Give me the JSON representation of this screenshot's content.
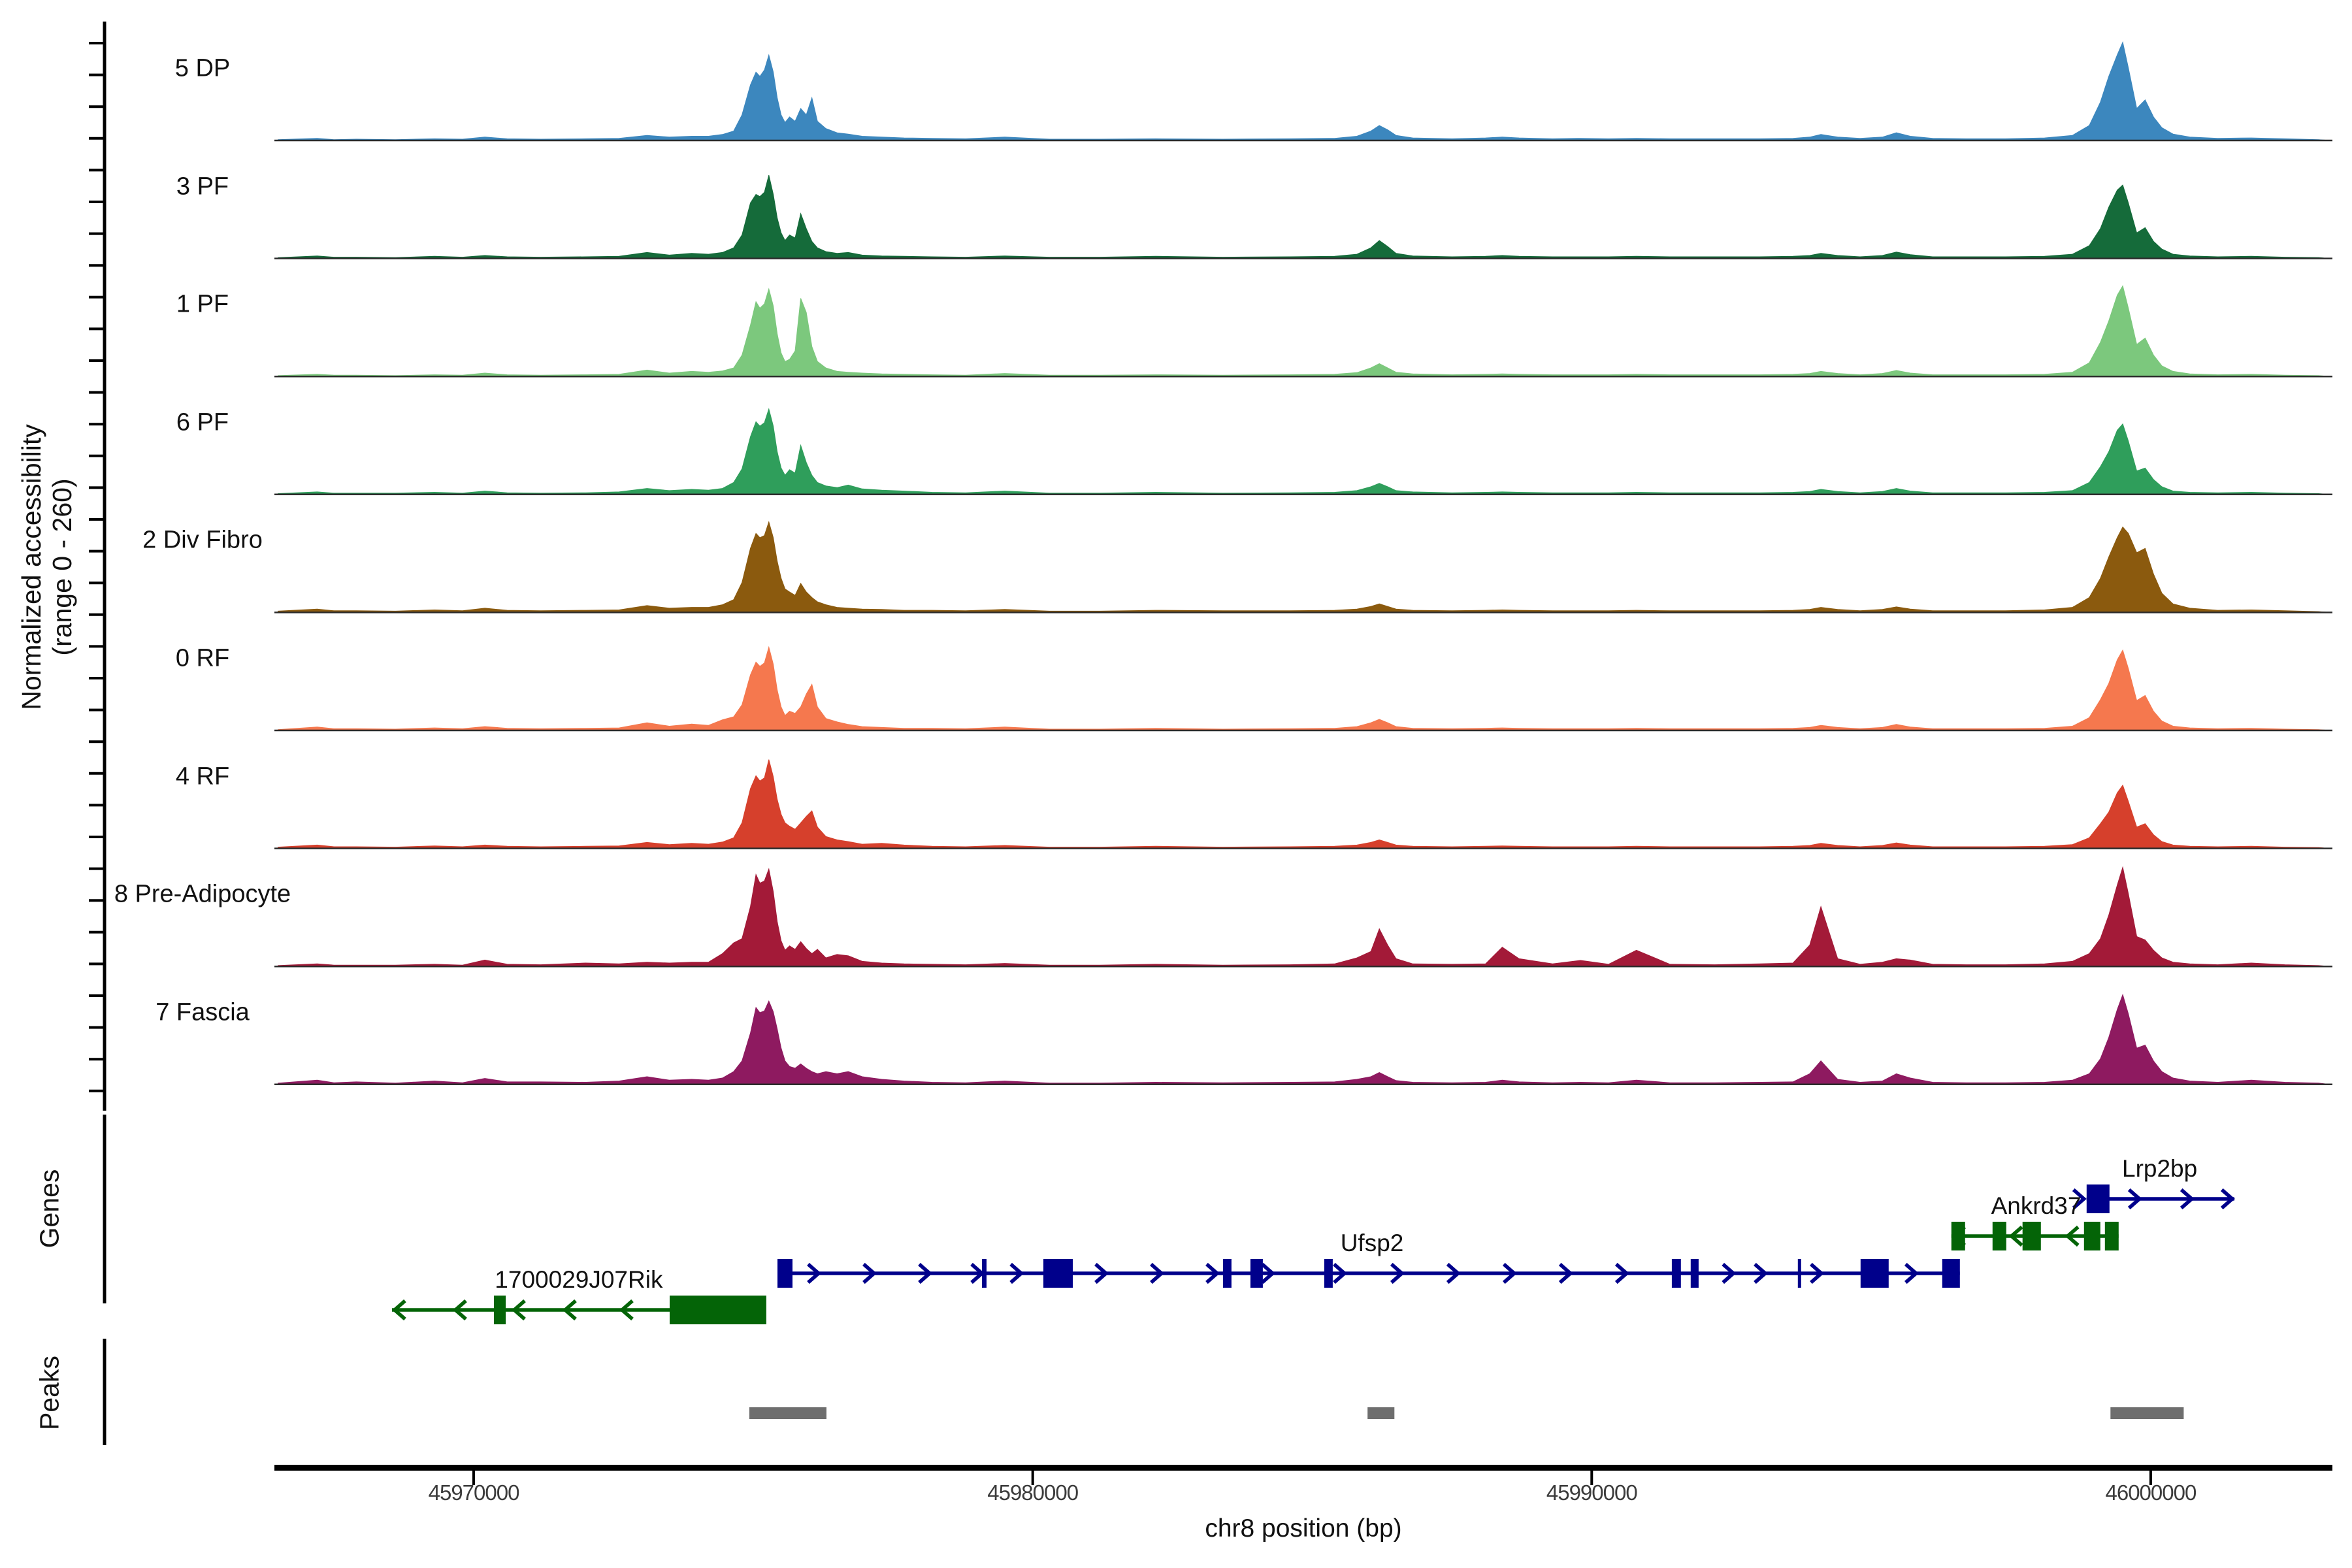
{
  "figure": {
    "x_axis_title": "chr8 position (bp)",
    "y_axis_label_line1": "Normalized accessibility",
    "y_axis_label_line2": "(range 0 - 260)",
    "genes_section_label": "Genes",
    "peaks_section_label": "Peaks"
  },
  "chart_data": {
    "type": "area",
    "subtype": "genome-coverage-tracks",
    "xlabel": "chr8 position (bp)",
    "ylabel": "Normalized accessibility (range 0 - 260)",
    "x_range_bp": [
      45966435,
      46003250
    ],
    "y_range_per_track": [
      0,
      260
    ],
    "x_ticks": [
      {
        "bp": 45970000,
        "label": "45970000"
      },
      {
        "bp": 45980000,
        "label": "45980000"
      },
      {
        "bp": 45990000,
        "label": "45990000"
      },
      {
        "bp": 46000000,
        "label": "46000000"
      }
    ],
    "x": [
      45966500,
      45967200,
      45967500,
      45967900,
      45968600,
      45969300,
      45969800,
      45970200,
      45970600,
      45971200,
      45972000,
      45972600,
      45973100,
      45973500,
      45973900,
      45974200,
      45974450,
      45974650,
      45974800,
      45974950,
      45975050,
      45975120,
      45975200,
      45975280,
      45975360,
      45975430,
      45975500,
      45975570,
      45975650,
      45975750,
      45975850,
      45975950,
      45976050,
      45976150,
      45976300,
      45976500,
      45976700,
      45976950,
      45977300,
      45977700,
      45978200,
      45978800,
      45979500,
      45980300,
      45981200,
      45982200,
      45983400,
      45984600,
      45985400,
      45985800,
      45986050,
      45986200,
      45986350,
      45986500,
      45986800,
      45987500,
      45988100,
      45988400,
      45988700,
      45989300,
      45989800,
      45990300,
      45990800,
      45991400,
      45992200,
      45993000,
      45993600,
      45993900,
      45994100,
      45994400,
      45994800,
      45995200,
      45995450,
      45995700,
      45996100,
      45996700,
      45997400,
      45998100,
      45998600,
      45998900,
      45999100,
      45999250,
      45999400,
      45999500,
      45999600,
      45999750,
      45999900,
      46000050,
      46000200,
      46000400,
      46000700,
      46001200,
      46001800,
      46002400,
      46003000,
      46003200
    ],
    "tracks": [
      {
        "label": "5 DP",
        "color": "#3C87BE",
        "values": [
          2,
          5,
          2,
          3,
          2,
          4,
          3,
          8,
          4,
          3,
          4,
          5,
          12,
          8,
          10,
          10,
          14,
          22,
          60,
          130,
          160,
          150,
          165,
          200,
          160,
          100,
          60,
          42,
          55,
          45,
          75,
          60,
          100,
          45,
          28,
          18,
          15,
          10,
          8,
          6,
          5,
          4,
          8,
          3,
          3,
          4,
          3,
          4,
          5,
          10,
          22,
          35,
          25,
          12,
          6,
          4,
          6,
          8,
          6,
          4,
          5,
          4,
          5,
          4,
          4,
          4,
          5,
          8,
          14,
          8,
          5,
          8,
          18,
          10,
          5,
          4,
          4,
          6,
          12,
          35,
          90,
          150,
          200,
          230,
          170,
          75,
          95,
          55,
          30,
          15,
          8,
          5,
          6,
          4,
          2,
          0
        ]
      },
      {
        "label": "3 PF",
        "color": "#156B3A",
        "values": [
          2,
          6,
          3,
          3,
          2,
          5,
          3,
          7,
          4,
          3,
          4,
          5,
          14,
          8,
          12,
          10,
          14,
          25,
          55,
          130,
          150,
          145,
          155,
          195,
          150,
          95,
          60,
          42,
          55,
          48,
          105,
          70,
          40,
          25,
          16,
          12,
          14,
          8,
          6,
          5,
          4,
          3,
          6,
          3,
          3,
          5,
          3,
          4,
          5,
          10,
          25,
          42,
          28,
          12,
          6,
          4,
          5,
          7,
          5,
          4,
          4,
          4,
          5,
          4,
          4,
          4,
          5,
          7,
          12,
          7,
          4,
          7,
          15,
          9,
          4,
          4,
          4,
          5,
          10,
          30,
          70,
          120,
          160,
          172,
          130,
          60,
          72,
          40,
          22,
          10,
          6,
          4,
          5,
          3,
          2,
          0
        ]
      },
      {
        "label": "1 PF",
        "color": "#7CC87D",
        "values": [
          2,
          5,
          3,
          3,
          2,
          4,
          3,
          8,
          4,
          3,
          4,
          5,
          15,
          8,
          12,
          10,
          13,
          20,
          50,
          120,
          175,
          160,
          170,
          205,
          165,
          100,
          55,
          35,
          40,
          60,
          183,
          150,
          70,
          35,
          20,
          12,
          10,
          8,
          6,
          5,
          4,
          3,
          7,
          3,
          3,
          4,
          3,
          4,
          5,
          9,
          20,
          30,
          20,
          10,
          6,
          4,
          5,
          6,
          5,
          4,
          4,
          4,
          5,
          4,
          4,
          4,
          5,
          7,
          12,
          7,
          4,
          7,
          14,
          8,
          4,
          4,
          4,
          5,
          10,
          32,
          80,
          130,
          190,
          212,
          160,
          75,
          90,
          50,
          25,
          12,
          6,
          4,
          5,
          3,
          2,
          0
        ]
      },
      {
        "label": "6 PF",
        "color": "#2F9E5B",
        "values": [
          2,
          6,
          3,
          3,
          3,
          5,
          3,
          8,
          4,
          3,
          4,
          6,
          14,
          9,
          12,
          10,
          14,
          28,
          60,
          135,
          170,
          160,
          168,
          200,
          160,
          100,
          62,
          45,
          58,
          50,
          115,
          75,
          45,
          28,
          20,
          16,
          22,
          13,
          10,
          8,
          5,
          4,
          8,
          3,
          3,
          5,
          3,
          4,
          5,
          9,
          18,
          26,
          18,
          9,
          6,
          4,
          5,
          6,
          5,
          4,
          4,
          4,
          5,
          4,
          4,
          4,
          5,
          7,
          12,
          7,
          4,
          7,
          14,
          8,
          4,
          4,
          4,
          5,
          9,
          28,
          65,
          100,
          150,
          165,
          125,
          55,
          62,
          35,
          18,
          8,
          5,
          4,
          5,
          3,
          2,
          0
        ]
      },
      {
        "label": "2 Div Fibro",
        "color": "#8B5A0E",
        "values": [
          3,
          8,
          4,
          4,
          3,
          6,
          4,
          10,
          5,
          4,
          5,
          6,
          16,
          10,
          12,
          12,
          18,
          30,
          70,
          150,
          185,
          175,
          180,
          212,
          175,
          120,
          80,
          55,
          48,
          40,
          68,
          48,
          35,
          25,
          18,
          12,
          10,
          8,
          7,
          5,
          5,
          4,
          7,
          3,
          3,
          5,
          4,
          4,
          5,
          8,
          14,
          20,
          14,
          8,
          5,
          4,
          5,
          6,
          5,
          4,
          4,
          4,
          5,
          4,
          4,
          4,
          5,
          7,
          12,
          7,
          4,
          7,
          13,
          8,
          4,
          4,
          4,
          6,
          12,
          35,
          80,
          130,
          175,
          200,
          185,
          140,
          150,
          90,
          45,
          20,
          10,
          5,
          6,
          4,
          2,
          0
        ]
      },
      {
        "label": "0 RF",
        "color": "#F5784E",
        "values": [
          2,
          8,
          4,
          4,
          3,
          6,
          4,
          9,
          5,
          4,
          5,
          6,
          18,
          10,
          15,
          12,
          25,
          32,
          60,
          130,
          160,
          150,
          158,
          195,
          155,
          95,
          55,
          35,
          45,
          40,
          55,
          85,
          108,
          55,
          28,
          20,
          14,
          9,
          7,
          5,
          5,
          4,
          8,
          3,
          3,
          5,
          3,
          4,
          5,
          9,
          18,
          26,
          18,
          9,
          5,
          4,
          5,
          6,
          5,
          4,
          4,
          4,
          5,
          4,
          4,
          4,
          5,
          7,
          12,
          7,
          4,
          7,
          14,
          8,
          4,
          4,
          4,
          5,
          10,
          30,
          72,
          110,
          165,
          188,
          145,
          70,
          82,
          45,
          22,
          10,
          6,
          4,
          5,
          3,
          2,
          0
        ]
      },
      {
        "label": "4 RF",
        "color": "#D6402C",
        "values": [
          3,
          8,
          4,
          4,
          3,
          6,
          4,
          8,
          5,
          4,
          5,
          6,
          14,
          9,
          12,
          10,
          15,
          25,
          60,
          140,
          170,
          158,
          165,
          208,
          168,
          115,
          80,
          60,
          52,
          45,
          60,
          75,
          88,
          50,
          28,
          20,
          16,
          10,
          12,
          8,
          5,
          4,
          7,
          3,
          3,
          5,
          3,
          4,
          5,
          8,
          14,
          20,
          14,
          8,
          5,
          4,
          5,
          6,
          5,
          4,
          4,
          4,
          5,
          4,
          4,
          4,
          5,
          7,
          12,
          7,
          4,
          7,
          13,
          8,
          4,
          4,
          4,
          5,
          9,
          25,
          58,
          85,
          130,
          148,
          110,
          50,
          58,
          32,
          16,
          8,
          5,
          4,
          5,
          3,
          2,
          0
        ]
      },
      {
        "label": "8 Pre-Adipocyte",
        "color": "#A31A38",
        "values": [
          2,
          6,
          3,
          3,
          3,
          5,
          3,
          15,
          5,
          4,
          8,
          6,
          10,
          8,
          10,
          10,
          30,
          55,
          65,
          140,
          215,
          195,
          200,
          228,
          175,
          105,
          60,
          38,
          48,
          40,
          58,
          42,
          30,
          40,
          20,
          28,
          25,
          12,
          8,
          6,
          5,
          4,
          7,
          3,
          3,
          5,
          3,
          4,
          6,
          20,
          35,
          88,
          50,
          18,
          6,
          5,
          6,
          45,
          18,
          6,
          14,
          5,
          38,
          5,
          4,
          6,
          8,
          50,
          140,
          18,
          5,
          10,
          18,
          15,
          5,
          4,
          4,
          6,
          12,
          30,
          65,
          120,
          190,
          232,
          170,
          70,
          62,
          38,
          20,
          10,
          6,
          4,
          8,
          4,
          2,
          0
        ]
      },
      {
        "label": "7 Fascia",
        "color": "#8E1A60",
        "values": [
          3,
          10,
          4,
          6,
          3,
          8,
          4,
          14,
          6,
          6,
          5,
          8,
          18,
          10,
          12,
          10,
          15,
          30,
          55,
          120,
          180,
          168,
          172,
          195,
          170,
          130,
          85,
          55,
          42,
          38,
          48,
          38,
          30,
          25,
          30,
          25,
          30,
          18,
          12,
          8,
          5,
          4,
          8,
          3,
          3,
          5,
          4,
          5,
          6,
          12,
          18,
          28,
          18,
          9,
          5,
          4,
          5,
          10,
          6,
          4,
          5,
          4,
          10,
          4,
          4,
          5,
          6,
          25,
          55,
          12,
          5,
          8,
          25,
          15,
          5,
          4,
          4,
          5,
          10,
          25,
          60,
          110,
          175,
          210,
          165,
          85,
          92,
          55,
          30,
          15,
          8,
          5,
          10,
          5,
          3,
          0
        ]
      }
    ],
    "genes": [
      {
        "name": "Lrp2bp",
        "color": "#00008B",
        "strand": "right",
        "row": 0,
        "label_bp": 46000160,
        "line": [
          45998853,
          46001495
        ],
        "exons": [
          [
            45998853,
            45999262
          ]
        ],
        "arrows": [
          45998770,
          45999764,
          46000699,
          46001424
        ]
      },
      {
        "name": "Ankrd37",
        "color": "#046407",
        "strand": "left",
        "row": 1,
        "label_bp": 45997950,
        "line": [
          45996434,
          45999425
        ],
        "exons": [
          [
            45996434,
            45996679
          ],
          [
            45997170,
            45997415
          ],
          [
            45997707,
            45998035
          ],
          [
            45998806,
            45999098
          ],
          [
            45999180,
            45999425
          ]
        ],
        "arrows": [
          45996520,
          45997544,
          45998549
        ]
      },
      {
        "name": "Ufsp2",
        "color": "#00008B",
        "strand": "right",
        "row": 2,
        "label_bp": 45986070,
        "line": [
          45975434,
          45996585
        ],
        "exons": [
          [
            45975434,
            45975703
          ],
          [
            45979092,
            45979174
          ],
          [
            45980191,
            45980717
          ],
          [
            45983404,
            45983556
          ],
          [
            45983895,
            45984117
          ],
          [
            45985215,
            45985367
          ],
          [
            45991433,
            45991596
          ],
          [
            45991771,
            45991912
          ],
          [
            45993688,
            45993740
          ],
          [
            45994810,
            45995312
          ],
          [
            45996270,
            45996585
          ]
        ],
        "arrows": [
          45976135,
          45977128,
          45978122,
          45979058,
          45979760,
          45981277,
          45982270,
          45983264,
          45984257,
          45985543,
          45986570,
          45987574,
          45988580,
          45989584,
          45990590,
          45992500,
          45993070,
          45994074,
          45995768
        ]
      },
      {
        "name": "1700029J07Rik",
        "color": "#046407",
        "strand": "left",
        "row": 3,
        "label_bp": 45971880,
        "line": [
          45968539,
          45973600
        ],
        "exons": [
          [
            45970362,
            45970573
          ],
          [
            45973506,
            45975235
          ]
        ],
        "arrows": [
          45968620,
          45969708,
          45970760,
          45971671,
          45972688
        ]
      }
    ],
    "peaks": {
      "color": "#6E6E6E",
      "regions": [
        [
          45974930,
          45976310
        ],
        [
          45985990,
          45986470
        ],
        [
          45999280,
          46000590
        ]
      ]
    },
    "layout_hint": {
      "grid": false,
      "legend": "none",
      "tracks_share_x": true
    }
  }
}
